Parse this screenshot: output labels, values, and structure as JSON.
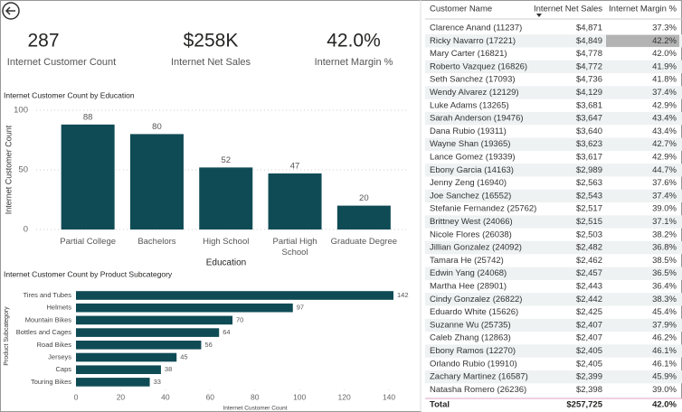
{
  "kpis": [
    {
      "value": "287",
      "label": "Internet Customer Count"
    },
    {
      "value": "$258K",
      "label": "Internet Net Sales"
    },
    {
      "value": "42.0%",
      "label": "Internet Margin %"
    }
  ],
  "chart_data": [
    {
      "type": "bar",
      "title": "Internet Customer Count by Education",
      "categories": [
        "Partial College",
        "Bachelors",
        "High School",
        "Partial High School",
        "Graduate Degree"
      ],
      "values": [
        88,
        80,
        52,
        47,
        20
      ],
      "color": "#0f4b55",
      "ylim": [
        0,
        100
      ],
      "yticks": [
        0,
        50,
        100
      ],
      "grid": true,
      "xlabel": "Education",
      "ylabel": "Internet Customer Count"
    },
    {
      "type": "hbar",
      "title": "Internet Customer Count by Product Subcategory",
      "categories": [
        "Tires and Tubes",
        "Helmets",
        "Mountain Bikes",
        "Bottles and Cages",
        "Road Bikes",
        "Jerseys",
        "Caps",
        "Touring Bikes"
      ],
      "values": [
        142,
        97,
        70,
        64,
        56,
        45,
        38,
        33
      ],
      "color": "#0f4b55",
      "xlim": [
        0,
        142
      ],
      "xticks": [
        0,
        20,
        40,
        60,
        80,
        100,
        120,
        140
      ],
      "grid": false,
      "xlabel": "Internet Customer Count",
      "ylabel": "Product Subcategory"
    }
  ],
  "table": {
    "columns": [
      "Customer Name",
      "Internet Net Sales",
      "Internet Margin %"
    ],
    "rows": [
      [
        "Clarence Anand (11237)",
        "$4,871",
        "37.3%"
      ],
      [
        "Ricky Navarro (17221)",
        "$4,849",
        "42.2%"
      ],
      [
        "Mary Carter (16821)",
        "$4,778",
        "42.0%"
      ],
      [
        "Roberto Vazquez (16826)",
        "$4,772",
        "41.9%"
      ],
      [
        "Seth Sanchez (17093)",
        "$4,736",
        "41.8%"
      ],
      [
        "Wendy Alvarez (12129)",
        "$4,129",
        "37.4%"
      ],
      [
        "Luke Adams (13265)",
        "$3,681",
        "42.9%"
      ],
      [
        "Sarah Anderson (19476)",
        "$3,647",
        "43.4%"
      ],
      [
        "Dana Rubio (19311)",
        "$3,640",
        "43.4%"
      ],
      [
        "Wayne Shan (19365)",
        "$3,623",
        "42.7%"
      ],
      [
        "Lance Gomez (19339)",
        "$3,617",
        "42.9%"
      ],
      [
        "Ebony Garcia (14163)",
        "$2,989",
        "44.7%"
      ],
      [
        "Jenny Zeng (16940)",
        "$2,563",
        "37.6%"
      ],
      [
        "Joe Sanchez (16552)",
        "$2,543",
        "37.4%"
      ],
      [
        "Stefanie Fernandez (25762)",
        "$2,517",
        "39.0%"
      ],
      [
        "Brittney West (24066)",
        "$2,515",
        "37.1%"
      ],
      [
        "Nicole Flores (26038)",
        "$2,503",
        "38.2%"
      ],
      [
        "Jillian Gonzalez (24092)",
        "$2,482",
        "36.8%"
      ],
      [
        "Tamara He (25742)",
        "$2,462",
        "38.5%"
      ],
      [
        "Edwin Yang (24068)",
        "$2,457",
        "36.5%"
      ],
      [
        "Martha Hee (28901)",
        "$2,443",
        "36.4%"
      ],
      [
        "Cindy Gonzalez (26822)",
        "$2,442",
        "38.3%"
      ],
      [
        "Eduardo White (15626)",
        "$2,425",
        "45.4%"
      ],
      [
        "Suzanne Wu (25735)",
        "$2,407",
        "37.9%"
      ],
      [
        "Caleb Zhang (12863)",
        "$2,407",
        "46.2%"
      ],
      [
        "Ebony Ramos (12270)",
        "$2,405",
        "46.1%"
      ],
      [
        "Orlando Rubio (19910)",
        "$2,405",
        "46.1%"
      ],
      [
        "Zachary Martinez (16587)",
        "$2,399",
        "45.9%"
      ],
      [
        "Natasha Romero (26236)",
        "$2,398",
        "39.0%"
      ]
    ],
    "total": [
      "Total",
      "$257,725",
      "42.0%"
    ]
  }
}
